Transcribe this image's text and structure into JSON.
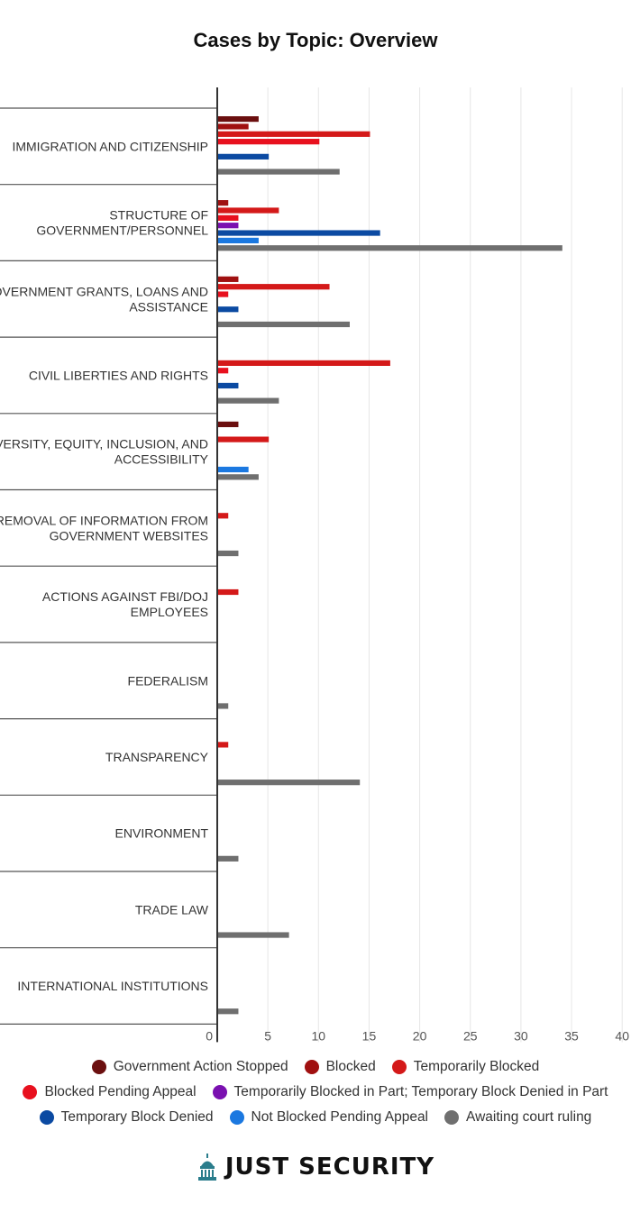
{
  "chart_data": {
    "type": "bar",
    "orientation": "horizontal",
    "title": "Cases by Topic: Overview",
    "xlabel": "",
    "ylabel": "",
    "xlim": [
      0,
      40
    ],
    "xticks": [
      0,
      5,
      10,
      15,
      20,
      25,
      30,
      35,
      40
    ],
    "grid": true,
    "legend_position": "bottom",
    "categories": [
      "IMMIGRATION AND CITIZENSHIP",
      "STRUCTURE OF GOVERNMENT/PERSONNEL",
      "GOVERNMENT GRANTS, LOANS AND ASSISTANCE",
      "CIVIL LIBERTIES AND RIGHTS",
      "DIVERSITY, EQUITY, INCLUSION, AND ACCESSIBILITY",
      "REMOVAL OF INFORMATION FROM GOVERNMENT WEBSITES",
      "ACTIONS AGAINST FBI/DOJ EMPLOYEES",
      "FEDERALISM",
      "TRANSPARENCY",
      "ENVIRONMENT",
      "TRADE LAW",
      "INTERNATIONAL INSTITUTIONS"
    ],
    "category_label_lines": [
      [
        "IMMIGRATION AND CITIZENSHIP"
      ],
      [
        "STRUCTURE OF",
        "GOVERNMENT/PERSONNEL"
      ],
      [
        "GOVERNMENT GRANTS, LOANS AND",
        "ASSISTANCE"
      ],
      [
        "CIVIL LIBERTIES AND RIGHTS"
      ],
      [
        "DIVERSITY, EQUITY, INCLUSION, AND",
        "ACCESSIBILITY"
      ],
      [
        "REMOVAL OF INFORMATION FROM",
        "GOVERNMENT WEBSITES"
      ],
      [
        "ACTIONS AGAINST FBI/DOJ",
        "EMPLOYEES"
      ],
      [
        "FEDERALISM"
      ],
      [
        "TRANSPARENCY"
      ],
      [
        "ENVIRONMENT"
      ],
      [
        "TRADE LAW"
      ],
      [
        "INTERNATIONAL INSTITUTIONS"
      ]
    ],
    "series": [
      {
        "name": "Government Action Stopped",
        "color": "#6b0f0f",
        "values": [
          4,
          0,
          0,
          0,
          2,
          0,
          0,
          0,
          0,
          0,
          0,
          0
        ]
      },
      {
        "name": "Blocked",
        "color": "#a01010",
        "values": [
          3,
          1,
          2,
          0,
          0,
          0,
          0,
          0,
          0,
          0,
          0,
          0
        ]
      },
      {
        "name": "Temporarily Blocked",
        "color": "#d41919",
        "values": [
          15,
          6,
          11,
          17,
          5,
          1,
          2,
          0,
          1,
          0,
          0,
          0
        ]
      },
      {
        "name": "Blocked Pending Appeal",
        "color": "#e8101e",
        "values": [
          10,
          2,
          1,
          1,
          0,
          0,
          0,
          0,
          0,
          0,
          0,
          0
        ]
      },
      {
        "name": "Temporarily Blocked in Part; Temporary Block Denied in Part",
        "color": "#7a10b0",
        "values": [
          0,
          2,
          0,
          0,
          0,
          0,
          0,
          0,
          0,
          0,
          0,
          0
        ]
      },
      {
        "name": "Temporary Block Denied",
        "color": "#0b4aa2",
        "values": [
          5,
          16,
          2,
          2,
          0,
          0,
          0,
          0,
          0,
          0,
          0,
          0
        ]
      },
      {
        "name": "Not Blocked Pending Appeal",
        "color": "#1b78e0",
        "values": [
          0,
          4,
          0,
          0,
          3,
          0,
          0,
          0,
          0,
          0,
          0,
          0
        ]
      },
      {
        "name": "Awaiting court ruling",
        "color": "#6f6f6f",
        "values": [
          12,
          34,
          13,
          6,
          4,
          2,
          0,
          1,
          14,
          2,
          7,
          2
        ]
      }
    ]
  },
  "legend_rows": [
    [
      0,
      1,
      2
    ],
    [
      3,
      4
    ],
    [
      5,
      6,
      7
    ]
  ],
  "brand": {
    "name": "JUST SECURITY",
    "icon": "capitol-dome-icon",
    "color": "#2a7d8c"
  }
}
